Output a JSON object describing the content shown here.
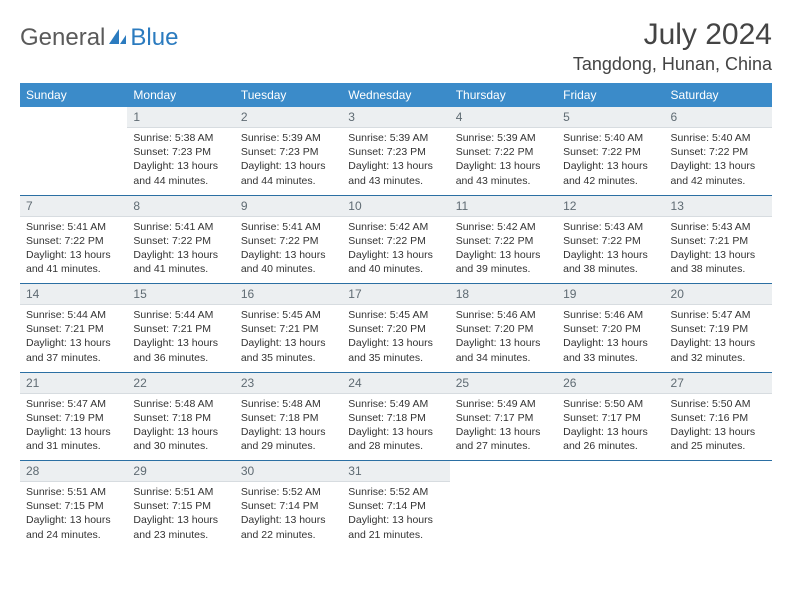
{
  "brand": {
    "part1": "General",
    "part2": "Blue"
  },
  "header": {
    "month_title": "July 2024",
    "location": "Tangdong, Hunan, China"
  },
  "colors": {
    "header_bg": "#3b8bc9",
    "header_text": "#ffffff",
    "daynum_bg": "#eceff1",
    "daynum_text": "#5f6b73",
    "divider": "#2b6fa3",
    "brand_gray": "#5a5a5a",
    "brand_blue": "#2b7bbf"
  },
  "weekdays": [
    "Sunday",
    "Monday",
    "Tuesday",
    "Wednesday",
    "Thursday",
    "Friday",
    "Saturday"
  ],
  "weeks": [
    [
      {
        "day": "",
        "sunrise": "",
        "sunset": "",
        "daylight": ""
      },
      {
        "day": "1",
        "sunrise": "5:38 AM",
        "sunset": "7:23 PM",
        "daylight": "13 hours and 44 minutes."
      },
      {
        "day": "2",
        "sunrise": "5:39 AM",
        "sunset": "7:23 PM",
        "daylight": "13 hours and 44 minutes."
      },
      {
        "day": "3",
        "sunrise": "5:39 AM",
        "sunset": "7:23 PM",
        "daylight": "13 hours and 43 minutes."
      },
      {
        "day": "4",
        "sunrise": "5:39 AM",
        "sunset": "7:22 PM",
        "daylight": "13 hours and 43 minutes."
      },
      {
        "day": "5",
        "sunrise": "5:40 AM",
        "sunset": "7:22 PM",
        "daylight": "13 hours and 42 minutes."
      },
      {
        "day": "6",
        "sunrise": "5:40 AM",
        "sunset": "7:22 PM",
        "daylight": "13 hours and 42 minutes."
      }
    ],
    [
      {
        "day": "7",
        "sunrise": "5:41 AM",
        "sunset": "7:22 PM",
        "daylight": "13 hours and 41 minutes."
      },
      {
        "day": "8",
        "sunrise": "5:41 AM",
        "sunset": "7:22 PM",
        "daylight": "13 hours and 41 minutes."
      },
      {
        "day": "9",
        "sunrise": "5:41 AM",
        "sunset": "7:22 PM",
        "daylight": "13 hours and 40 minutes."
      },
      {
        "day": "10",
        "sunrise": "5:42 AM",
        "sunset": "7:22 PM",
        "daylight": "13 hours and 40 minutes."
      },
      {
        "day": "11",
        "sunrise": "5:42 AM",
        "sunset": "7:22 PM",
        "daylight": "13 hours and 39 minutes."
      },
      {
        "day": "12",
        "sunrise": "5:43 AM",
        "sunset": "7:22 PM",
        "daylight": "13 hours and 38 minutes."
      },
      {
        "day": "13",
        "sunrise": "5:43 AM",
        "sunset": "7:21 PM",
        "daylight": "13 hours and 38 minutes."
      }
    ],
    [
      {
        "day": "14",
        "sunrise": "5:44 AM",
        "sunset": "7:21 PM",
        "daylight": "13 hours and 37 minutes."
      },
      {
        "day": "15",
        "sunrise": "5:44 AM",
        "sunset": "7:21 PM",
        "daylight": "13 hours and 36 minutes."
      },
      {
        "day": "16",
        "sunrise": "5:45 AM",
        "sunset": "7:21 PM",
        "daylight": "13 hours and 35 minutes."
      },
      {
        "day": "17",
        "sunrise": "5:45 AM",
        "sunset": "7:20 PM",
        "daylight": "13 hours and 35 minutes."
      },
      {
        "day": "18",
        "sunrise": "5:46 AM",
        "sunset": "7:20 PM",
        "daylight": "13 hours and 34 minutes."
      },
      {
        "day": "19",
        "sunrise": "5:46 AM",
        "sunset": "7:20 PM",
        "daylight": "13 hours and 33 minutes."
      },
      {
        "day": "20",
        "sunrise": "5:47 AM",
        "sunset": "7:19 PM",
        "daylight": "13 hours and 32 minutes."
      }
    ],
    [
      {
        "day": "21",
        "sunrise": "5:47 AM",
        "sunset": "7:19 PM",
        "daylight": "13 hours and 31 minutes."
      },
      {
        "day": "22",
        "sunrise": "5:48 AM",
        "sunset": "7:18 PM",
        "daylight": "13 hours and 30 minutes."
      },
      {
        "day": "23",
        "sunrise": "5:48 AM",
        "sunset": "7:18 PM",
        "daylight": "13 hours and 29 minutes."
      },
      {
        "day": "24",
        "sunrise": "5:49 AM",
        "sunset": "7:18 PM",
        "daylight": "13 hours and 28 minutes."
      },
      {
        "day": "25",
        "sunrise": "5:49 AM",
        "sunset": "7:17 PM",
        "daylight": "13 hours and 27 minutes."
      },
      {
        "day": "26",
        "sunrise": "5:50 AM",
        "sunset": "7:17 PM",
        "daylight": "13 hours and 26 minutes."
      },
      {
        "day": "27",
        "sunrise": "5:50 AM",
        "sunset": "7:16 PM",
        "daylight": "13 hours and 25 minutes."
      }
    ],
    [
      {
        "day": "28",
        "sunrise": "5:51 AM",
        "sunset": "7:15 PM",
        "daylight": "13 hours and 24 minutes."
      },
      {
        "day": "29",
        "sunrise": "5:51 AM",
        "sunset": "7:15 PM",
        "daylight": "13 hours and 23 minutes."
      },
      {
        "day": "30",
        "sunrise": "5:52 AM",
        "sunset": "7:14 PM",
        "daylight": "13 hours and 22 minutes."
      },
      {
        "day": "31",
        "sunrise": "5:52 AM",
        "sunset": "7:14 PM",
        "daylight": "13 hours and 21 minutes."
      },
      {
        "day": "",
        "sunrise": "",
        "sunset": "",
        "daylight": ""
      },
      {
        "day": "",
        "sunrise": "",
        "sunset": "",
        "daylight": ""
      },
      {
        "day": "",
        "sunrise": "",
        "sunset": "",
        "daylight": ""
      }
    ]
  ],
  "labels": {
    "sunrise_prefix": "Sunrise: ",
    "sunset_prefix": "Sunset: ",
    "daylight_prefix": "Daylight: "
  }
}
